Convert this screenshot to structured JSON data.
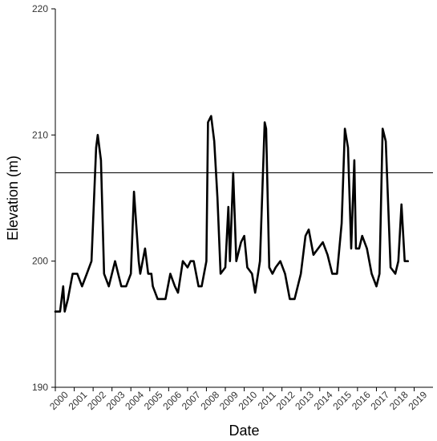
{
  "chart_data": {
    "type": "line",
    "title": "",
    "xlabel": "Date",
    "ylabel": "Elevation (m)",
    "ylim": [
      190,
      220
    ],
    "xlim": [
      "2000-01-01",
      "2019-12-31"
    ],
    "yticks": [
      190,
      200,
      210,
      220
    ],
    "xtick_labels": [
      "2000",
      "2001",
      "2002",
      "2003",
      "2004",
      "2005",
      "2006",
      "2007",
      "2008",
      "2009",
      "2010",
      "2011",
      "2012",
      "2013",
      "2014",
      "2015",
      "2016",
      "2017",
      "2018",
      "2019"
    ],
    "grid": false,
    "legend": "none",
    "reference_line": {
      "y": 207
    },
    "series": [
      {
        "x": [
          "2000-01-01",
          "2000-04-01",
          "2000-06-01",
          "2000-07-01",
          "2000-09-01",
          "2000-12-01",
          "2001-03-01",
          "2001-06-01",
          "2001-09-01",
          "2001-12-01",
          "2002-03-01",
          "2002-04-01",
          "2002-06-01",
          "2002-08-01",
          "2002-11-01",
          "2003-03-01",
          "2003-05-01",
          "2003-07-01",
          "2003-10-01",
          "2004-01-01",
          "2004-03-01",
          "2004-06-01",
          "2004-07-01",
          "2004-10-01",
          "2004-12-01",
          "2005-02-01",
          "2005-03-01",
          "2005-06-01",
          "2005-11-01",
          "2006-02-01",
          "2006-05-01",
          "2006-07-01",
          "2006-10-01",
          "2007-01-01",
          "2007-03-01",
          "2007-05-01",
          "2007-08-01",
          "2007-10-01",
          "2008-01-01",
          "2008-02-01",
          "2008-04-01",
          "2008-06-01",
          "2008-08-01",
          "2008-10-01",
          "2009-01-01",
          "2009-03-01",
          "2009-04-01",
          "2009-06-01",
          "2009-08-01",
          "2009-11-01",
          "2010-01-01",
          "2010-03-01",
          "2010-06-01",
          "2010-08-01",
          "2010-11-01",
          "2011-02-01",
          "2011-03-01",
          "2011-05-01",
          "2011-07-01",
          "2011-09-01",
          "2011-12-01",
          "2012-03-01",
          "2012-06-01",
          "2012-09-01",
          "2013-01-01",
          "2013-04-01",
          "2013-06-01",
          "2013-09-01",
          "2013-12-01",
          "2014-03-01",
          "2014-06-01",
          "2014-09-01",
          "2014-12-01",
          "2015-03-01",
          "2015-05-01",
          "2015-07-01",
          "2015-09-01",
          "2015-11-01",
          "2015-12-01",
          "2016-02-01",
          "2016-04-01",
          "2016-07-01",
          "2016-10-01",
          "2017-01-01",
          "2017-03-01",
          "2017-05-01",
          "2017-07-01",
          "2017-10-01",
          "2018-01-01",
          "2018-03-01",
          "2018-05-01",
          "2018-07-01",
          "2018-09-01"
        ],
        "values": [
          196,
          196,
          198,
          196,
          197,
          199,
          199,
          198,
          199,
          200,
          209,
          210,
          208,
          199,
          198,
          200,
          199,
          198,
          198,
          199,
          205.5,
          200,
          199,
          201,
          199,
          199,
          198,
          197,
          197,
          199,
          198,
          197.5,
          200,
          199.5,
          200,
          200,
          198,
          198,
          200,
          211,
          211.5,
          209.5,
          205,
          199,
          199.5,
          204.3,
          200,
          207,
          200,
          201.5,
          202,
          199.5,
          199,
          197.5,
          200,
          211,
          210.5,
          199.5,
          199,
          199.5,
          200,
          199,
          197,
          197,
          199,
          202,
          202.5,
          200.5,
          201,
          201.5,
          200.5,
          199,
          199,
          203,
          210.5,
          209,
          201,
          208,
          201,
          201,
          202,
          201,
          199,
          198,
          199,
          210.5,
          209.5,
          199.5,
          199,
          200,
          204.5,
          200,
          200
        ]
      }
    ]
  }
}
